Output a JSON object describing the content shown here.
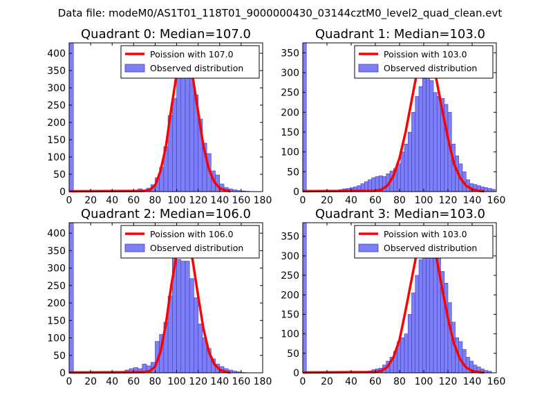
{
  "figure_title": "Data file: modeM0/AS1T01_118T01_9000000430_03144cztM0_level2_quad_clean.evt",
  "colors": {
    "bar_fill": "#7f7ff5",
    "bar_edge": "#3a3acc",
    "poisson": "#ff0000",
    "axes": "#000000"
  },
  "chart_data": [
    {
      "type": "bar",
      "title": "Quadrant 0: Median=107.0",
      "median": 107.0,
      "legend": [
        "Poission with 107.0",
        "Observed distribution"
      ],
      "legend_position": "top-right",
      "xlim": [
        0,
        180
      ],
      "ylim": [
        0,
        430
      ],
      "xticks": [
        0,
        20,
        40,
        60,
        80,
        100,
        120,
        140,
        160,
        180
      ],
      "yticks": [
        0,
        50,
        100,
        150,
        200,
        250,
        300,
        350,
        400
      ],
      "bin_width": 4,
      "bins": [
        [
          0,
          430
        ],
        [
          64,
          8
        ],
        [
          68,
          5
        ],
        [
          72,
          10
        ],
        [
          76,
          20
        ],
        [
          80,
          40
        ],
        [
          84,
          70
        ],
        [
          88,
          130
        ],
        [
          92,
          220
        ],
        [
          96,
          270
        ],
        [
          100,
          340
        ],
        [
          104,
          345
        ],
        [
          108,
          360
        ],
        [
          112,
          330
        ],
        [
          116,
          280
        ],
        [
          120,
          210
        ],
        [
          124,
          140
        ],
        [
          128,
          110
        ],
        [
          132,
          60
        ],
        [
          136,
          48
        ],
        [
          140,
          22
        ],
        [
          144,
          12
        ],
        [
          148,
          8
        ],
        [
          152,
          5
        ],
        [
          156,
          3
        ],
        [
          160,
          2
        ],
        [
          164,
          1
        ]
      ],
      "poisson_curve": [
        [
          0,
          1
        ],
        [
          70,
          2
        ],
        [
          75,
          5
        ],
        [
          80,
          18
        ],
        [
          85,
          60
        ],
        [
          90,
          130
        ],
        [
          95,
          240
        ],
        [
          100,
          340
        ],
        [
          105,
          400
        ],
        [
          108,
          412
        ],
        [
          110,
          400
        ],
        [
          115,
          330
        ],
        [
          120,
          230
        ],
        [
          125,
          130
        ],
        [
          130,
          65
        ],
        [
          135,
          28
        ],
        [
          140,
          10
        ],
        [
          145,
          4
        ],
        [
          150,
          1
        ]
      ]
    },
    {
      "type": "bar",
      "title": "Quadrant 1: Median=103.0",
      "median": 103.0,
      "legend": [
        "Poission with 103.0",
        "Observed distribution"
      ],
      "legend_position": "top-right",
      "xlim": [
        0,
        160
      ],
      "ylim": [
        0,
        375
      ],
      "xticks": [
        0,
        20,
        40,
        60,
        80,
        100,
        120,
        140,
        160
      ],
      "yticks": [
        0,
        50,
        100,
        150,
        200,
        250,
        300,
        350
      ],
      "bin_width": 3,
      "bins": [
        [
          0,
          375
        ],
        [
          27,
          3
        ],
        [
          30,
          5
        ],
        [
          33,
          7
        ],
        [
          36,
          8
        ],
        [
          39,
          10
        ],
        [
          42,
          12
        ],
        [
          45,
          15
        ],
        [
          48,
          20
        ],
        [
          51,
          25
        ],
        [
          54,
          30
        ],
        [
          57,
          35
        ],
        [
          60,
          38
        ],
        [
          63,
          40
        ],
        [
          66,
          38
        ],
        [
          69,
          45
        ],
        [
          72,
          52
        ],
        [
          75,
          58
        ],
        [
          78,
          70
        ],
        [
          81,
          100
        ],
        [
          84,
          120
        ],
        [
          87,
          150
        ],
        [
          90,
          200
        ],
        [
          93,
          240
        ],
        [
          96,
          265
        ],
        [
          99,
          285
        ],
        [
          102,
          300
        ],
        [
          105,
          280
        ],
        [
          108,
          250
        ],
        [
          111,
          240
        ],
        [
          114,
          235
        ],
        [
          117,
          220
        ],
        [
          120,
          200
        ],
        [
          123,
          120
        ],
        [
          126,
          90
        ],
        [
          129,
          70
        ],
        [
          132,
          50
        ],
        [
          135,
          30
        ],
        [
          138,
          20
        ],
        [
          141,
          18
        ],
        [
          144,
          15
        ],
        [
          147,
          12
        ],
        [
          150,
          10
        ],
        [
          153,
          8
        ],
        [
          156,
          6
        ]
      ],
      "poisson_curve": [
        [
          0,
          1
        ],
        [
          60,
          2
        ],
        [
          65,
          5
        ],
        [
          70,
          15
        ],
        [
          75,
          40
        ],
        [
          80,
          85
        ],
        [
          85,
          150
        ],
        [
          90,
          230
        ],
        [
          95,
          310
        ],
        [
          100,
          350
        ],
        [
          103,
          357
        ],
        [
          105,
          350
        ],
        [
          110,
          290
        ],
        [
          115,
          210
        ],
        [
          120,
          135
        ],
        [
          125,
          70
        ],
        [
          130,
          35
        ],
        [
          135,
          15
        ],
        [
          140,
          6
        ],
        [
          145,
          2
        ],
        [
          150,
          1
        ]
      ]
    },
    {
      "type": "bar",
      "title": "Quadrant 2: Median=106.0",
      "median": 106.0,
      "legend": [
        "Poission with 106.0",
        "Observed distribution"
      ],
      "legend_position": "top-right",
      "xlim": [
        0,
        180
      ],
      "ylim": [
        0,
        430
      ],
      "xticks": [
        0,
        20,
        40,
        60,
        80,
        100,
        120,
        140,
        160,
        180
      ],
      "yticks": [
        0,
        50,
        100,
        150,
        200,
        250,
        300,
        350,
        400
      ],
      "bin_width": 4,
      "bins": [
        [
          0,
          430
        ],
        [
          52,
          8
        ],
        [
          56,
          12
        ],
        [
          60,
          15
        ],
        [
          64,
          12
        ],
        [
          68,
          25
        ],
        [
          72,
          20
        ],
        [
          76,
          30
        ],
        [
          80,
          90
        ],
        [
          84,
          110
        ],
        [
          88,
          145
        ],
        [
          92,
          220
        ],
        [
          96,
          340
        ],
        [
          100,
          325
        ],
        [
          104,
          320
        ],
        [
          108,
          320
        ],
        [
          112,
          270
        ],
        [
          116,
          215
        ],
        [
          120,
          140
        ],
        [
          124,
          100
        ],
        [
          128,
          70
        ],
        [
          132,
          40
        ],
        [
          136,
          25
        ],
        [
          140,
          18
        ],
        [
          144,
          12
        ],
        [
          148,
          8
        ],
        [
          152,
          5
        ],
        [
          156,
          3
        ],
        [
          160,
          1
        ]
      ],
      "poisson_curve": [
        [
          0,
          1
        ],
        [
          70,
          2
        ],
        [
          75,
          5
        ],
        [
          80,
          18
        ],
        [
          85,
          60
        ],
        [
          90,
          140
        ],
        [
          95,
          250
        ],
        [
          100,
          340
        ],
        [
          105,
          405
        ],
        [
          107,
          412
        ],
        [
          110,
          395
        ],
        [
          115,
          320
        ],
        [
          120,
          220
        ],
        [
          125,
          125
        ],
        [
          130,
          60
        ],
        [
          135,
          25
        ],
        [
          140,
          9
        ],
        [
          145,
          3
        ],
        [
          150,
          1
        ]
      ]
    },
    {
      "type": "bar",
      "title": "Quadrant 3: Median=103.0",
      "median": 103.0,
      "legend": [
        "Poission with 103.0",
        "Observed distribution"
      ],
      "legend_position": "top-right",
      "xlim": [
        0,
        160
      ],
      "ylim": [
        0,
        385
      ],
      "xticks": [
        0,
        20,
        40,
        60,
        80,
        100,
        120,
        140,
        160
      ],
      "yticks": [
        0,
        50,
        100,
        150,
        200,
        250,
        300,
        350
      ],
      "bin_width": 3,
      "bins": [
        [
          0,
          385
        ],
        [
          54,
          5
        ],
        [
          57,
          8
        ],
        [
          60,
          10
        ],
        [
          63,
          12
        ],
        [
          66,
          20
        ],
        [
          69,
          30
        ],
        [
          72,
          40
        ],
        [
          75,
          55
        ],
        [
          78,
          80
        ],
        [
          81,
          90
        ],
        [
          84,
          100
        ],
        [
          87,
          150
        ],
        [
          90,
          205
        ],
        [
          93,
          250
        ],
        [
          96,
          290
        ],
        [
          99,
          340
        ],
        [
          102,
          350
        ],
        [
          105,
          350
        ],
        [
          108,
          340
        ],
        [
          111,
          310
        ],
        [
          114,
          260
        ],
        [
          117,
          230
        ],
        [
          120,
          180
        ],
        [
          123,
          130
        ],
        [
          126,
          90
        ],
        [
          129,
          80
        ],
        [
          132,
          60
        ],
        [
          135,
          40
        ],
        [
          138,
          30
        ],
        [
          141,
          20
        ],
        [
          144,
          15
        ],
        [
          147,
          10
        ],
        [
          150,
          6
        ],
        [
          153,
          4
        ]
      ],
      "poisson_curve": [
        [
          0,
          1
        ],
        [
          60,
          2
        ],
        [
          65,
          5
        ],
        [
          70,
          15
        ],
        [
          75,
          40
        ],
        [
          80,
          85
        ],
        [
          85,
          160
        ],
        [
          90,
          240
        ],
        [
          95,
          320
        ],
        [
          100,
          365
        ],
        [
          103,
          372
        ],
        [
          105,
          365
        ],
        [
          110,
          305
        ],
        [
          115,
          220
        ],
        [
          120,
          140
        ],
        [
          125,
          75
        ],
        [
          130,
          35
        ],
        [
          135,
          14
        ],
        [
          140,
          5
        ],
        [
          145,
          2
        ],
        [
          150,
          1
        ]
      ]
    }
  ]
}
